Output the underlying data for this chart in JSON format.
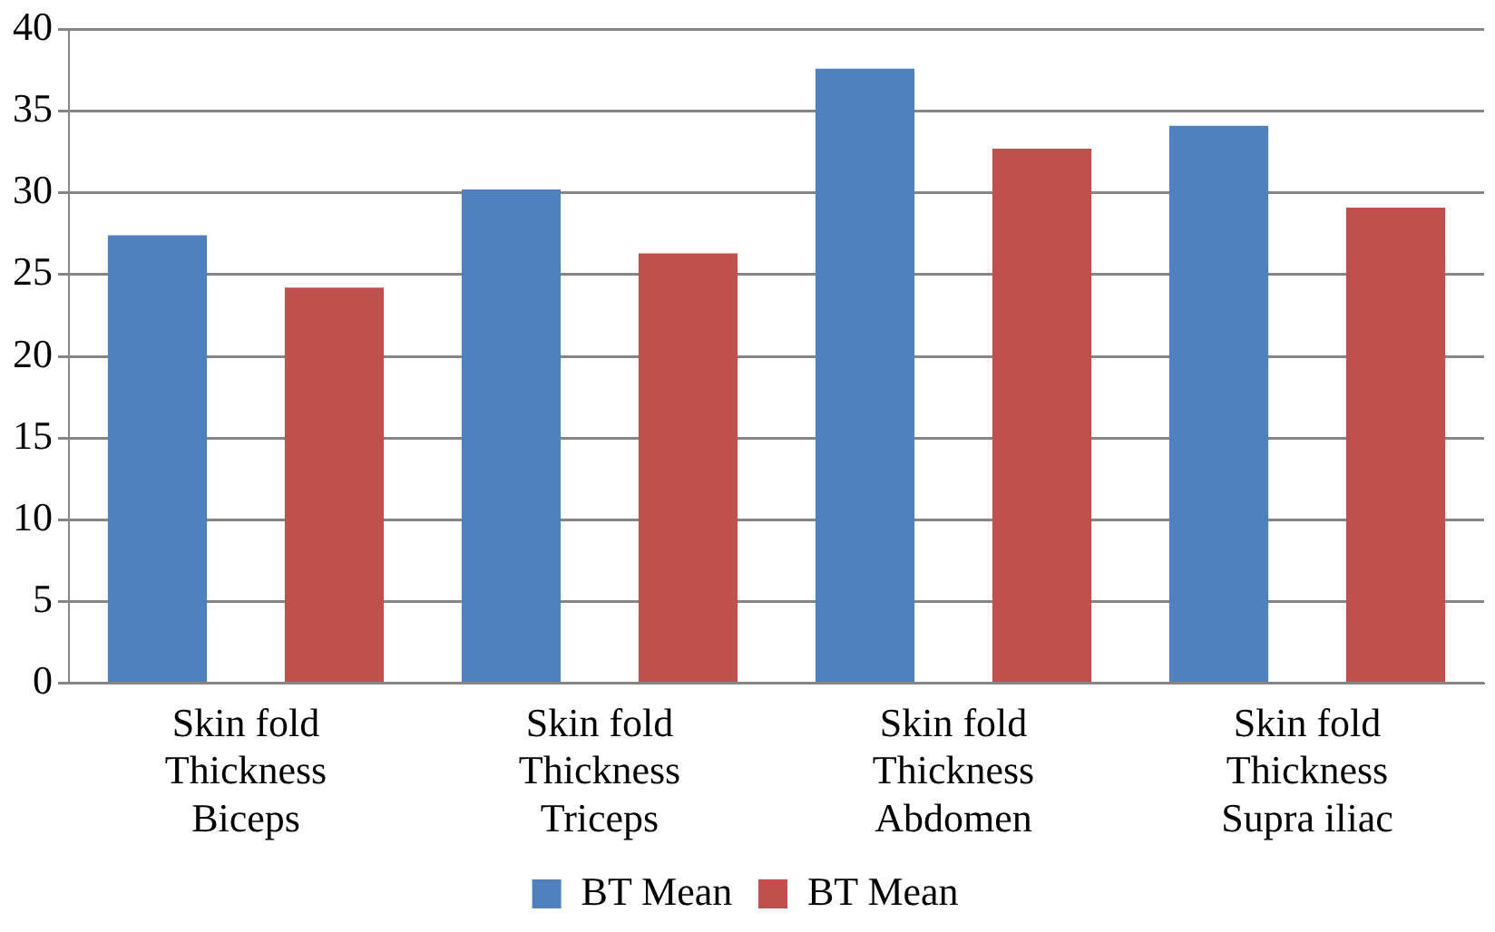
{
  "chart_data": {
    "type": "bar",
    "categories": [
      "Skin fold Thickness Biceps",
      "Skin fold Thickness Triceps",
      "Skin fold Thickness Abdomen",
      "Skin fold Thickness Supra iliac"
    ],
    "series": [
      {
        "name": "BT Mean",
        "color": "#4f81bd",
        "values": [
          27.4,
          30.2,
          37.6,
          34.1
        ]
      },
      {
        "name": "BT Mean",
        "color": "#c0504d",
        "values": [
          24.2,
          26.3,
          32.7,
          29.1
        ]
      }
    ],
    "ylim": [
      0,
      40
    ],
    "yticks": [
      0,
      5,
      10,
      15,
      20,
      25,
      30,
      35,
      40
    ],
    "grid": "y",
    "legend": "bottom"
  }
}
